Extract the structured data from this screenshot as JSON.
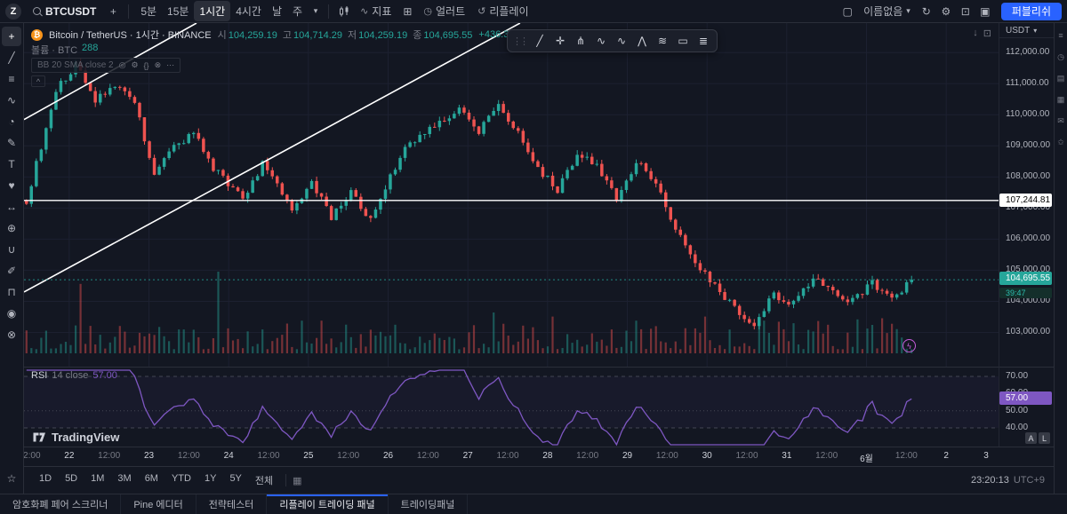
{
  "topbar": {
    "avatar_initial": "Z",
    "symbol": "BTCUSDT",
    "add_symbol": "+",
    "timeframes": [
      "5분",
      "15분",
      "1시간",
      "4시간",
      "날",
      "주"
    ],
    "active_timeframe": "1시간",
    "indicators_label": "지표",
    "alert_label": "얼러트",
    "replay_label": "리플레이",
    "layout_name": "이름없음",
    "publish_label": "퍼블리쉬"
  },
  "icons": {
    "chevron_down": "▾",
    "grid": "⊞",
    "clock": "◷",
    "replay": "↺",
    "gear": "⚙",
    "fullscreen": "⊡",
    "camera": "▣",
    "cloud": "↻",
    "square": "▢",
    "plus": "+",
    "indicator": "∿",
    "calendar": "▦",
    "bolt": "ϟ",
    "bitcoin": "₿",
    "eye": "◎",
    "braces": "{}",
    "trash": "⊗",
    "more": "⋯",
    "arrow_down": "↓"
  },
  "left_toolbar": {
    "tools": [
      {
        "name": "crosshair-tool",
        "glyph": "+"
      },
      {
        "name": "trend-line-tool",
        "glyph": "╱"
      },
      {
        "name": "fib-retracement-tool",
        "glyph": "≡"
      },
      {
        "name": "pattern-tool",
        "glyph": "∿"
      },
      {
        "name": "forecast-tool",
        "glyph": "◔"
      },
      {
        "name": "brush-tool",
        "glyph": "✎"
      },
      {
        "name": "text-tool",
        "glyph": "T"
      },
      {
        "name": "emoji-tool",
        "glyph": "♥"
      },
      {
        "name": "measure-tool",
        "glyph": "↔"
      },
      {
        "name": "zoom-tool",
        "glyph": "⊕"
      },
      {
        "name": "magnet-tool",
        "glyph": "∪"
      },
      {
        "name": "draw-tool",
        "glyph": "✐"
      },
      {
        "name": "lock-tool",
        "glyph": "⊓"
      },
      {
        "name": "hide-tool",
        "glyph": "◉"
      },
      {
        "name": "delete-tool",
        "glyph": "⊗"
      }
    ],
    "star_glyph": "☆"
  },
  "floating_toolbar": {
    "tools": [
      {
        "name": "trend-line-icon",
        "glyph": "╱"
      },
      {
        "name": "cross-line-icon",
        "glyph": "✛"
      },
      {
        "name": "pitchfork-icon",
        "glyph": "⋔"
      },
      {
        "name": "wave-pattern-icon",
        "glyph": "∿"
      },
      {
        "name": "elliott-wave-icon",
        "glyph": "∿"
      },
      {
        "name": "triangle-pattern-icon",
        "glyph": "⋀"
      },
      {
        "name": "channel-icon",
        "glyph": "≋"
      },
      {
        "name": "rectangle-icon",
        "glyph": "▭"
      },
      {
        "name": "parallel-lines-icon",
        "glyph": "≣"
      }
    ]
  },
  "right_strip": {
    "icons": [
      {
        "name": "watchlist-icon",
        "glyph": "≡"
      },
      {
        "name": "alerts-icon",
        "glyph": "◷"
      },
      {
        "name": "hotlist-icon",
        "glyph": "▤"
      },
      {
        "name": "calendar-icon",
        "glyph": "▦"
      },
      {
        "name": "chat-icon",
        "glyph": "✉"
      },
      {
        "name": "ideas-icon",
        "glyph": "✩"
      }
    ]
  },
  "legend": {
    "title": "Bitcoin / TetherUS · 1시간 · BINANCE",
    "ohlc": [
      {
        "label": "시",
        "value": "104,259.19"
      },
      {
        "label": "고",
        "value": "104,714.29"
      },
      {
        "label": "저",
        "value": "104,259.19"
      },
      {
        "label": "종",
        "value": "104,695.55"
      }
    ],
    "change": "+436.35 (+0.42%)",
    "volume_label": "볼륨",
    "volume_value": "287.94",
    "volume_row_label": "볼륨 · BTC",
    "volume_row_value": "288",
    "bb_label": "BB 20 SMA close 2",
    "collapse_glyph": "^"
  },
  "price_scale": {
    "currency": "USDT",
    "ticks": [
      "112,000.00",
      "111,000.00",
      "110,000.00",
      "109,000.00",
      "108,000.00",
      "107,000.00",
      "106,000.00",
      "105,000.00",
      "104,000.00",
      "103,000.00"
    ],
    "line_label": "107,244.81",
    "last_price": "104,695.55",
    "countdown": "39:47"
  },
  "rsi": {
    "name": "RSI",
    "params": "14 close",
    "value": "57.00",
    "ticks": [
      "70.00",
      "60.00",
      "50.00",
      "40.00"
    ]
  },
  "scale_buttons": [
    "A",
    "L"
  ],
  "time_axis": {
    "labels": [
      "12:00",
      "22",
      "12:00",
      "23",
      "12:00",
      "24",
      "12:00",
      "25",
      "12:00",
      "26",
      "12:00",
      "27",
      "12:00",
      "28",
      "12:00",
      "29",
      "12:00",
      "30",
      "12:00",
      "31",
      "12:00",
      "6월",
      "12:00",
      "2",
      "3"
    ]
  },
  "range_bar": {
    "ranges": [
      "1D",
      "5D",
      "1M",
      "3M",
      "6M",
      "YTD",
      "1Y",
      "5Y",
      "전체"
    ],
    "clock": "23:20:13",
    "timezone": "UTC+9"
  },
  "footer": {
    "tabs": [
      "암호화폐 페어 스크리너",
      "Pine 에디터",
      "전략테스터",
      "리플레이 트레이딩 패널",
      "트레이딩패널"
    ],
    "active_tab": "리플레이 트레이딩 패널"
  },
  "watermark": "TradingView",
  "chart_data": {
    "type": "candlestick",
    "symbol": "BTCUSDT",
    "exchange": "BINANCE",
    "interval": "1시간",
    "candle_count": 181,
    "y_max": 112950,
    "y_min": 101900,
    "up_color": "#26a69a",
    "down_color": "#ef5350",
    "price_path": [
      [
        0,
        107200
      ],
      [
        3,
        109000
      ],
      [
        6,
        110800
      ],
      [
        10,
        111600
      ],
      [
        14,
        110500
      ],
      [
        18,
        111000
      ],
      [
        22,
        110400
      ],
      [
        26,
        108100
      ],
      [
        30,
        109000
      ],
      [
        34,
        109400
      ],
      [
        38,
        108300
      ],
      [
        44,
        107300
      ],
      [
        48,
        108400
      ],
      [
        54,
        107000
      ],
      [
        58,
        107800
      ],
      [
        62,
        106700
      ],
      [
        66,
        107500
      ],
      [
        70,
        106600
      ],
      [
        76,
        108700
      ],
      [
        82,
        109600
      ],
      [
        88,
        110200
      ],
      [
        92,
        109500
      ],
      [
        96,
        110300
      ],
      [
        100,
        109400
      ],
      [
        104,
        108300
      ],
      [
        108,
        107600
      ],
      [
        112,
        108700
      ],
      [
        116,
        108400
      ],
      [
        120,
        107300
      ],
      [
        124,
        108500
      ],
      [
        128,
        107800
      ],
      [
        132,
        106300
      ],
      [
        136,
        105300
      ],
      [
        140,
        104500
      ],
      [
        144,
        103800
      ],
      [
        148,
        103300
      ],
      [
        152,
        104200
      ],
      [
        156,
        103900
      ],
      [
        160,
        104800
      ],
      [
        164,
        104300
      ],
      [
        168,
        104000
      ],
      [
        172,
        104600
      ],
      [
        176,
        104100
      ],
      [
        180,
        104695.55
      ]
    ],
    "volume_spikes": {
      "11": 0.85,
      "39": 1.0,
      "60": 0.4,
      "75": 0.35,
      "95": 0.5,
      "107": 0.45,
      "124": 0.4,
      "138": 0.45,
      "150": 0.4,
      "163": 0.35
    },
    "horizontal_line_price": 107244.81,
    "last_price": 104695.55,
    "trend_lines": [
      {
        "x1_frac": 0.0,
        "price1": 104300,
        "x2_frac": 0.509,
        "price2": 112950
      },
      {
        "x1_frac": 0.0,
        "price1": 109846,
        "x2_frac": 0.177,
        "price2": 112950
      }
    ],
    "rsi": {
      "period": 14,
      "overbought": 70,
      "middle": 50,
      "oversold": 40,
      "last": 57.0
    }
  }
}
